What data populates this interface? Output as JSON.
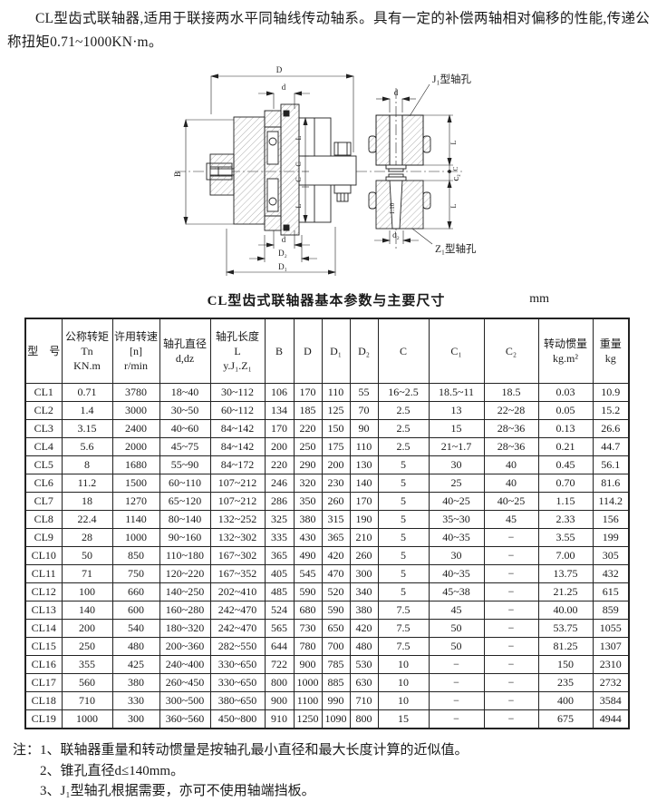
{
  "intro": "CL型齿式联轴器,适用于联接两水平同轴线传动轴系。具有一定的补偿两轴相对偏移的性能,传递公称扭矩0.71~1000KN·m。",
  "drawing": {
    "labels": {
      "D": "D",
      "d": "d",
      "B": "B",
      "L": "L",
      "C": "C",
      "D1": "D₁",
      "D2": "D₂",
      "d2": "d₂",
      "C2": "C₂",
      "taper": "1:10",
      "j1_hole": "J₁型轴孔",
      "z1_hole": "Z₁型轴孔"
    }
  },
  "table": {
    "title": "CL型齿式联轴器基本参数与主要尺寸",
    "unit": "mm",
    "header": [
      [
        "型　号"
      ],
      [
        "公称转矩",
        "Tn",
        "KN.m"
      ],
      [
        "许用转速",
        "[n]",
        "r/min"
      ],
      [
        "轴孔直径",
        "d,dz"
      ],
      [
        "轴孔长度",
        "L",
        "y.J₁.Z₁"
      ],
      [
        "B"
      ],
      [
        "D"
      ],
      [
        "D₁"
      ],
      [
        "D₂"
      ],
      [
        "C"
      ],
      [
        "C₁"
      ],
      [
        "C₂"
      ],
      [
        "转动惯量",
        "kg.m²"
      ],
      [
        "重量",
        "kg"
      ]
    ],
    "rows": [
      [
        "CL1",
        "0.71",
        "3780",
        "18~40",
        "30~112",
        "106",
        "170",
        "110",
        "55",
        "16~2.5",
        "18.5~11",
        "18.5",
        "0.03",
        "10.9"
      ],
      [
        "CL2",
        "1.4",
        "3000",
        "30~50",
        "60~112",
        "134",
        "185",
        "125",
        "70",
        "2.5",
        "13",
        "22~28",
        "0.05",
        "15.2"
      ],
      [
        "CL3",
        "3.15",
        "2400",
        "40~60",
        "84~142",
        "170",
        "220",
        "150",
        "90",
        "2.5",
        "15",
        "28~36",
        "0.13",
        "26.6"
      ],
      [
        "CL4",
        "5.6",
        "2000",
        "45~75",
        "84~142",
        "200",
        "250",
        "175",
        "110",
        "2.5",
        "21~1.7",
        "28~36",
        "0.21",
        "44.7"
      ],
      [
        "CL5",
        "8",
        "1680",
        "55~90",
        "84~172",
        "220",
        "290",
        "200",
        "130",
        "5",
        "30",
        "40",
        "0.45",
        "56.1"
      ],
      [
        "CL6",
        "11.2",
        "1500",
        "60~110",
        "107~212",
        "246",
        "320",
        "230",
        "140",
        "5",
        "25",
        "40",
        "0.70",
        "81.6"
      ],
      [
        "CL7",
        "18",
        "1270",
        "65~120",
        "107~212",
        "286",
        "350",
        "260",
        "170",
        "5",
        "40~25",
        "40~25",
        "1.15",
        "114.2"
      ],
      [
        "CL8",
        "22.4",
        "1140",
        "80~140",
        "132~252",
        "325",
        "380",
        "315",
        "190",
        "5",
        "35~30",
        "45",
        "2.33",
        "156"
      ],
      [
        "CL9",
        "28",
        "1000",
        "90~160",
        "132~302",
        "335",
        "430",
        "365",
        "210",
        "5",
        "40~35",
        "−",
        "3.55",
        "199"
      ],
      [
        "CL10",
        "50",
        "850",
        "110~180",
        "167~302",
        "365",
        "490",
        "420",
        "260",
        "5",
        "30",
        "−",
        "7.00",
        "305"
      ],
      [
        "CL11",
        "71",
        "750",
        "120~220",
        "167~352",
        "405",
        "545",
        "470",
        "300",
        "5",
        "40~35",
        "−",
        "13.75",
        "432"
      ],
      [
        "CL12",
        "100",
        "660",
        "140~250",
        "202~410",
        "485",
        "590",
        "520",
        "340",
        "5",
        "45~38",
        "−",
        "21.25",
        "615"
      ],
      [
        "CL13",
        "140",
        "600",
        "160~280",
        "242~470",
        "524",
        "680",
        "590",
        "380",
        "7.5",
        "45",
        "−",
        "40.00",
        "859"
      ],
      [
        "CL14",
        "200",
        "540",
        "180~320",
        "242~470",
        "565",
        "730",
        "650",
        "420",
        "7.5",
        "50",
        "−",
        "53.75",
        "1055"
      ],
      [
        "CL15",
        "250",
        "480",
        "200~360",
        "282~550",
        "644",
        "780",
        "700",
        "480",
        "7.5",
        "50",
        "−",
        "81.25",
        "1307"
      ],
      [
        "CL16",
        "355",
        "425",
        "240~400",
        "330~650",
        "722",
        "900",
        "785",
        "530",
        "10",
        "−",
        "−",
        "150",
        "2310"
      ],
      [
        "CL17",
        "560",
        "380",
        "260~450",
        "330~650",
        "800",
        "1000",
        "885",
        "630",
        "10",
        "−",
        "−",
        "235",
        "2732"
      ],
      [
        "CL18",
        "710",
        "330",
        "300~500",
        "380~650",
        "900",
        "1100",
        "990",
        "710",
        "10",
        "−",
        "−",
        "400",
        "3584"
      ],
      [
        "CL19",
        "1000",
        "300",
        "360~560",
        "450~800",
        "910",
        "1250",
        "1090",
        "800",
        "15",
        "−",
        "−",
        "675",
        "4944"
      ]
    ]
  },
  "notes": {
    "prefix": "注：",
    "items": [
      "1、联轴器重量和转动惯量是按轴孔最小直径和最大长度计算的近似值。",
      "2、锥孔直径d≤140mm。",
      "3、J₁型轴孔根据需要，亦可不使用轴端挡板。"
    ]
  }
}
